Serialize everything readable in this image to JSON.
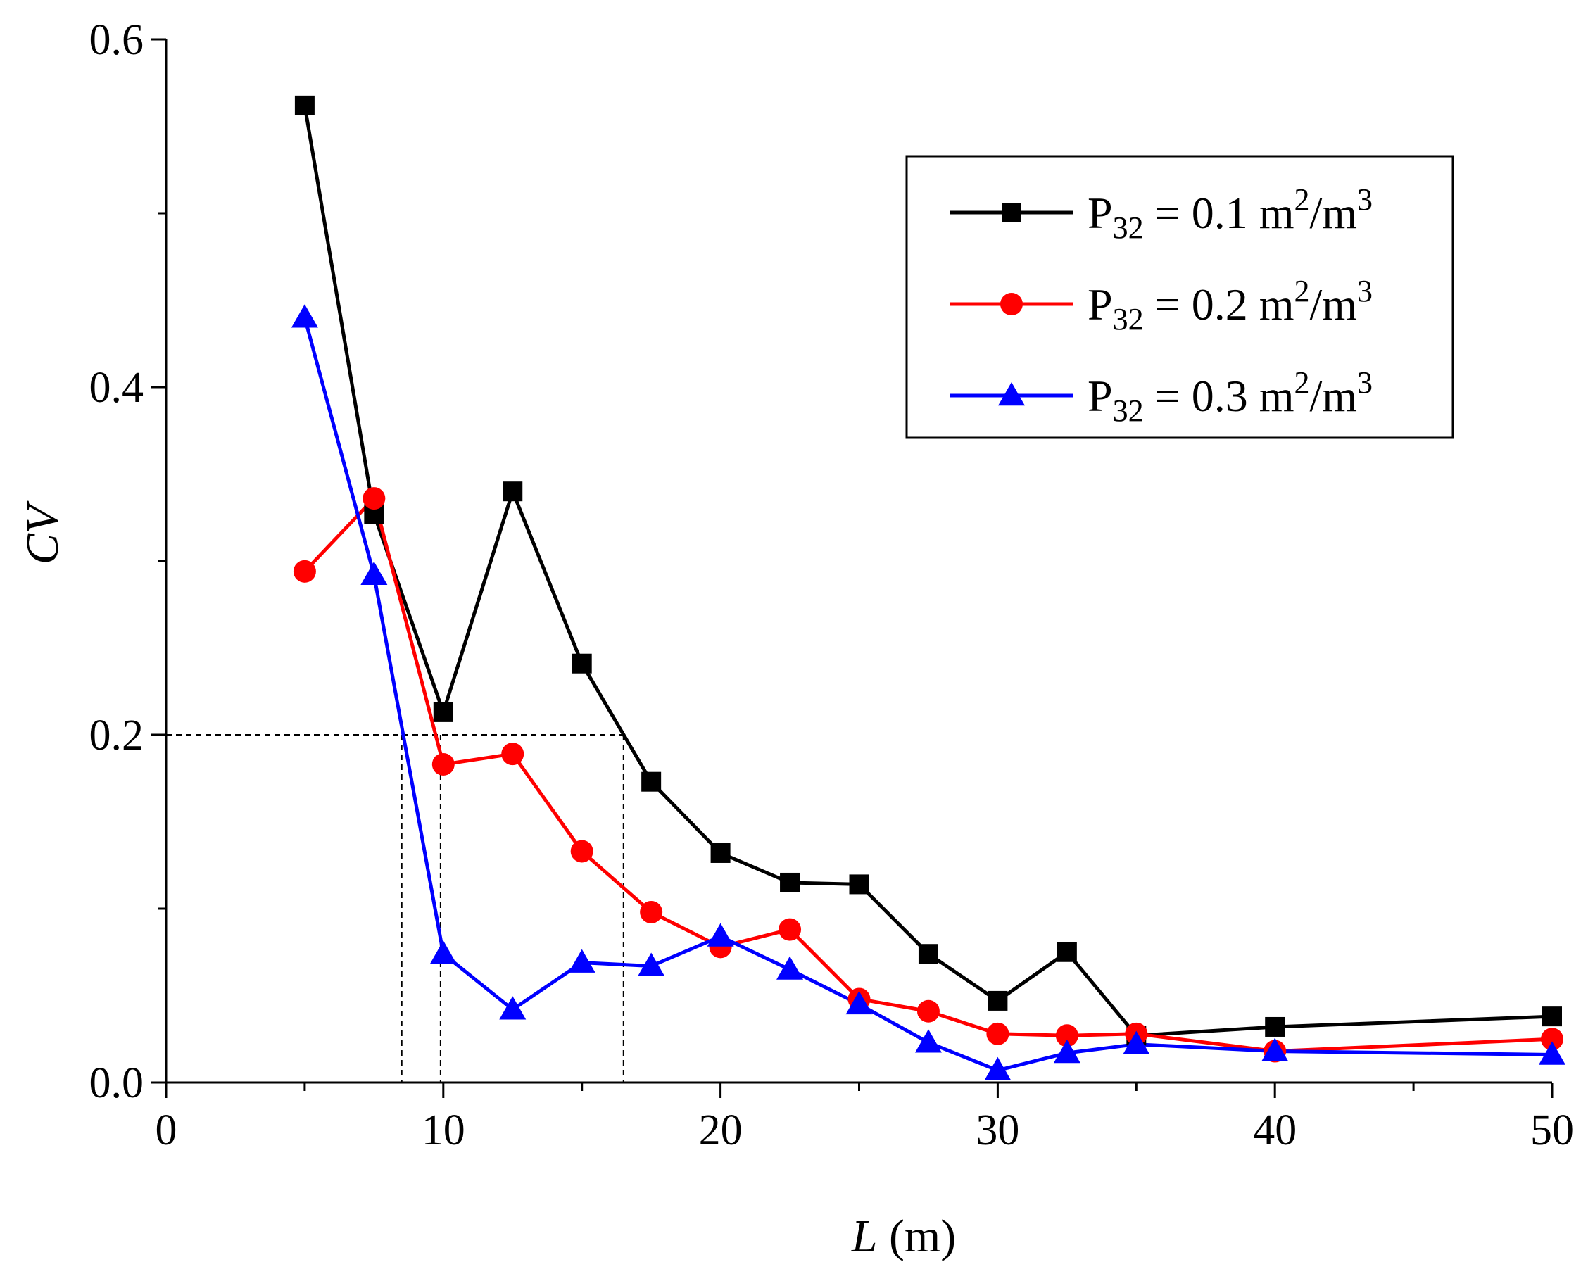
{
  "chart_data": {
    "type": "line",
    "xlabel_var": "L",
    "xlabel_unit": " (m)",
    "ylabel": "CV",
    "xlim": [
      0,
      50
    ],
    "ylim": [
      0,
      0.6
    ],
    "xticks": [
      0,
      10,
      20,
      30,
      40,
      50
    ],
    "xtick_labels": [
      "0",
      "10",
      "20",
      "30",
      "40",
      "50"
    ],
    "yticks": [
      0,
      0.2,
      0.4,
      0.6
    ],
    "ytick_labels": [
      "0.0",
      "0.2",
      "0.4",
      "0.6"
    ],
    "x_minor_step": 5,
    "y_minor_step": 0.1,
    "grid": false,
    "legend_position": "top-right",
    "reference_lines": {
      "horizontal_y": 0.2,
      "x_start": 0,
      "x_end": 16.5,
      "vertical_x": [
        8.5,
        9.9,
        16.5
      ]
    },
    "series": [
      {
        "label_main": "P",
        "label_sub": "32",
        "label_rest": " = 0.1 m",
        "label_sup1": "2",
        "label_unit2": "/m",
        "label_sup2": "3",
        "color": "#000000",
        "marker": "square",
        "x": [
          5,
          7.5,
          10,
          12.5,
          15,
          17.5,
          20,
          22.5,
          25,
          27.5,
          30,
          32.5,
          35,
          40,
          50
        ],
        "y": [
          0.562,
          0.327,
          0.213,
          0.34,
          0.241,
          0.173,
          0.132,
          0.115,
          0.114,
          0.074,
          0.047,
          0.075,
          0.027,
          0.032,
          0.038
        ]
      },
      {
        "label_main": "P",
        "label_sub": "32",
        "label_rest": " = 0.2 m",
        "label_sup1": "2",
        "label_unit2": "/m",
        "label_sup2": "3",
        "color": "#ff0000",
        "marker": "circle",
        "x": [
          5,
          7.5,
          10,
          12.5,
          15,
          17.5,
          20,
          22.5,
          25,
          27.5,
          30,
          32.5,
          35,
          40,
          50
        ],
        "y": [
          0.294,
          0.336,
          0.183,
          0.189,
          0.133,
          0.098,
          0.078,
          0.088,
          0.048,
          0.041,
          0.028,
          0.027,
          0.028,
          0.018,
          0.025
        ]
      },
      {
        "label_main": "P",
        "label_sub": "32",
        "label_rest": " = 0.3 m",
        "label_sup1": "2",
        "label_unit2": "/m",
        "label_sup2": "3",
        "color": "#0000ff",
        "marker": "triangle",
        "x": [
          5,
          7.5,
          10,
          12.5,
          15,
          17.5,
          20,
          22.5,
          25,
          27.5,
          30,
          32.5,
          35,
          40,
          50
        ],
        "y": [
          0.44,
          0.292,
          0.074,
          0.042,
          0.069,
          0.067,
          0.084,
          0.065,
          0.045,
          0.023,
          0.007,
          0.017,
          0.022,
          0.018,
          0.016
        ]
      }
    ]
  }
}
